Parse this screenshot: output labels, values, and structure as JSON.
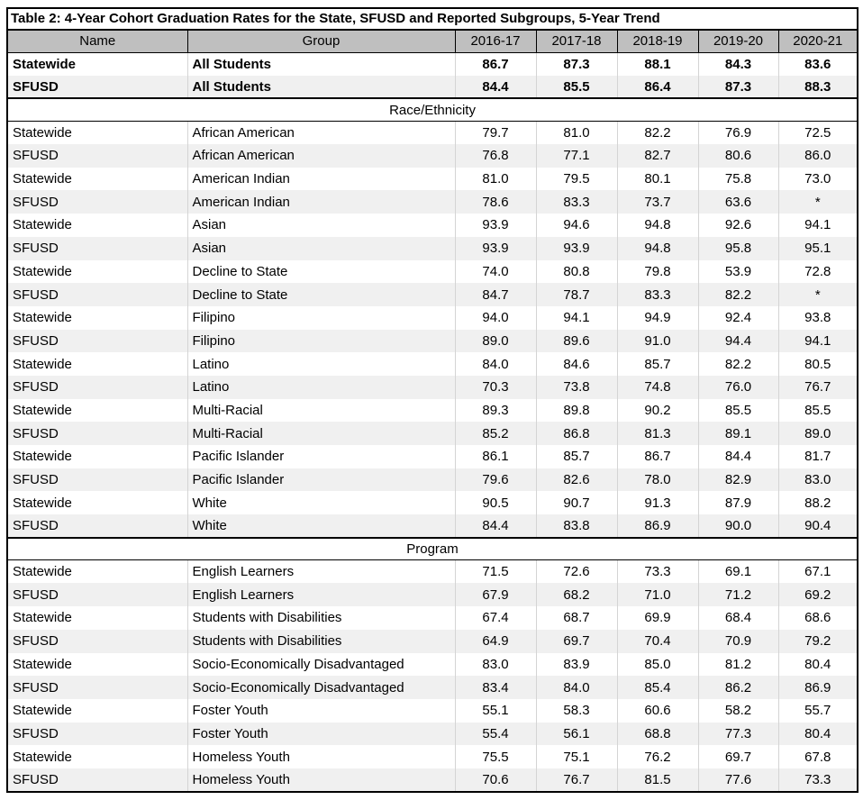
{
  "title": "Table 2: 4-Year Cohort Graduation Rates for the State, SFUSD and Reported Subgroups, 5-Year Trend",
  "columns": [
    "Name",
    "Group",
    "2016-17",
    "2017-18",
    "2018-19",
    "2019-20",
    "2020-21"
  ],
  "summary_rows": [
    {
      "name": "Statewide",
      "group": "All Students",
      "values": [
        "86.7",
        "87.3",
        "88.1",
        "84.3",
        "83.6"
      ]
    },
    {
      "name": "SFUSD",
      "group": "All Students",
      "values": [
        "84.4",
        "85.5",
        "86.4",
        "87.3",
        "88.3"
      ]
    }
  ],
  "sections": [
    {
      "label": "Race/Ethnicity",
      "rows": [
        {
          "name": "Statewide",
          "group": "African American",
          "values": [
            "79.7",
            "81.0",
            "82.2",
            "76.9",
            "72.5"
          ]
        },
        {
          "name": "SFUSD",
          "group": "African American",
          "values": [
            "76.8",
            "77.1",
            "82.7",
            "80.6",
            "86.0"
          ]
        },
        {
          "name": "Statewide",
          "group": "American Indian",
          "values": [
            "81.0",
            "79.5",
            "80.1",
            "75.8",
            "73.0"
          ]
        },
        {
          "name": "SFUSD",
          "group": "American Indian",
          "values": [
            "78.6",
            "83.3",
            "73.7",
            "63.6",
            "*"
          ]
        },
        {
          "name": "Statewide",
          "group": "Asian",
          "values": [
            "93.9",
            "94.6",
            "94.8",
            "92.6",
            "94.1"
          ]
        },
        {
          "name": "SFUSD",
          "group": "Asian",
          "values": [
            "93.9",
            "93.9",
            "94.8",
            "95.8",
            "95.1"
          ]
        },
        {
          "name": "Statewide",
          "group": "Decline to State",
          "values": [
            "74.0",
            "80.8",
            "79.8",
            "53.9",
            "72.8"
          ]
        },
        {
          "name": "SFUSD",
          "group": "Decline to State",
          "values": [
            "84.7",
            "78.7",
            "83.3",
            "82.2",
            "*"
          ]
        },
        {
          "name": "Statewide",
          "group": "Filipino",
          "values": [
            "94.0",
            "94.1",
            "94.9",
            "92.4",
            "93.8"
          ]
        },
        {
          "name": "SFUSD",
          "group": "Filipino",
          "values": [
            "89.0",
            "89.6",
            "91.0",
            "94.4",
            "94.1"
          ]
        },
        {
          "name": "Statewide",
          "group": "Latino",
          "values": [
            "84.0",
            "84.6",
            "85.7",
            "82.2",
            "80.5"
          ]
        },
        {
          "name": "SFUSD",
          "group": "Latino",
          "values": [
            "70.3",
            "73.8",
            "74.8",
            "76.0",
            "76.7"
          ]
        },
        {
          "name": "Statewide",
          "group": "Multi-Racial",
          "values": [
            "89.3",
            "89.8",
            "90.2",
            "85.5",
            "85.5"
          ]
        },
        {
          "name": "SFUSD",
          "group": "Multi-Racial",
          "values": [
            "85.2",
            "86.8",
            "81.3",
            "89.1",
            "89.0"
          ]
        },
        {
          "name": "Statewide",
          "group": "Pacific Islander",
          "values": [
            "86.1",
            "85.7",
            "86.7",
            "84.4",
            "81.7"
          ]
        },
        {
          "name": "SFUSD",
          "group": "Pacific Islander",
          "values": [
            "79.6",
            "82.6",
            "78.0",
            "82.9",
            "83.0"
          ]
        },
        {
          "name": "Statewide",
          "group": "White",
          "values": [
            "90.5",
            "90.7",
            "91.3",
            "87.9",
            "88.2"
          ]
        },
        {
          "name": "SFUSD",
          "group": "White",
          "values": [
            "84.4",
            "83.8",
            "86.9",
            "90.0",
            "90.4"
          ]
        }
      ]
    },
    {
      "label": "Program",
      "rows": [
        {
          "name": "Statewide",
          "group": "English Learners",
          "values": [
            "71.5",
            "72.6",
            "73.3",
            "69.1",
            "67.1"
          ]
        },
        {
          "name": "SFUSD",
          "group": "English Learners",
          "values": [
            "67.9",
            "68.2",
            "71.0",
            "71.2",
            "69.2"
          ]
        },
        {
          "name": "Statewide",
          "group": "Students with Disabilities",
          "values": [
            "67.4",
            "68.7",
            "69.9",
            "68.4",
            "68.6"
          ]
        },
        {
          "name": "SFUSD",
          "group": "Students with Disabilities",
          "values": [
            "64.9",
            "69.7",
            "70.4",
            "70.9",
            "79.2"
          ]
        },
        {
          "name": "Statewide",
          "group": "Socio-Economically Disadvantaged",
          "values": [
            "83.0",
            "83.9",
            "85.0",
            "81.2",
            "80.4"
          ]
        },
        {
          "name": "SFUSD",
          "group": "Socio-Economically Disadvantaged",
          "values": [
            "83.4",
            "84.0",
            "85.4",
            "86.2",
            "86.9"
          ]
        },
        {
          "name": "Statewide",
          "group": "Foster Youth",
          "values": [
            "55.1",
            "58.3",
            "60.6",
            "58.2",
            "55.7"
          ]
        },
        {
          "name": "SFUSD",
          "group": "Foster Youth",
          "values": [
            "55.4",
            "56.1",
            "68.8",
            "77.3",
            "80.4"
          ]
        },
        {
          "name": "Statewide",
          "group": "Homeless Youth",
          "values": [
            "75.5",
            "75.1",
            "76.2",
            "69.7",
            "67.8"
          ]
        },
        {
          "name": "SFUSD",
          "group": "Homeless Youth",
          "values": [
            "70.6",
            "76.7",
            "81.5",
            "77.6",
            "73.3"
          ]
        }
      ]
    }
  ],
  "colors": {
    "header_bg": "#bfbfbf",
    "alt_row_bg": "#f0f0f0",
    "divider": "#d4d4d4",
    "border": "#000000"
  }
}
